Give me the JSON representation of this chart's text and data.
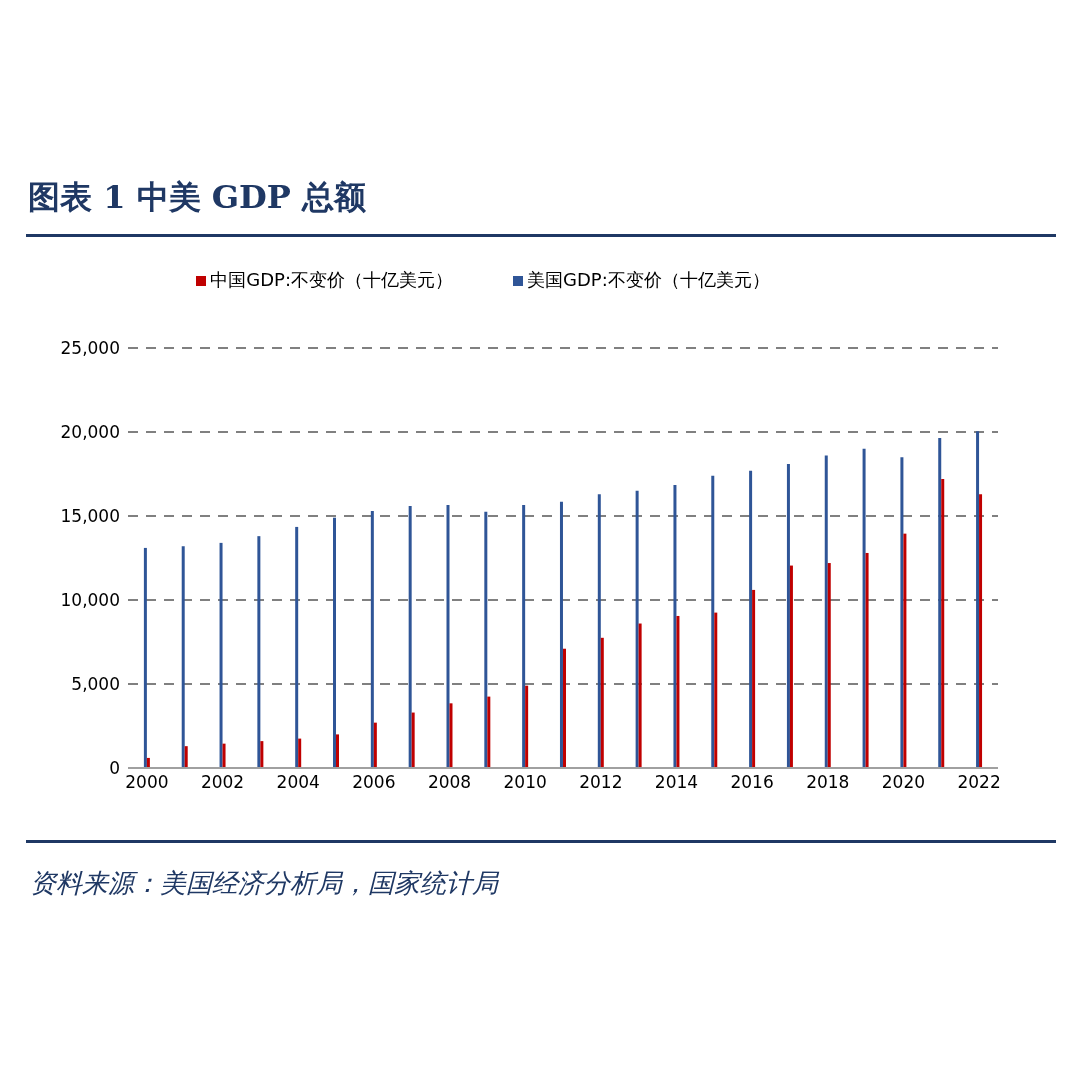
{
  "chart_data": {
    "type": "bar",
    "title": "图表 1  中美 GDP 总额",
    "annotations": [
      "资料来源：美国经济分析局，国家统计局"
    ],
    "categories": [
      "2000",
      null,
      "2002",
      null,
      "2004",
      null,
      "2006",
      null,
      "2008",
      null,
      "2010",
      null,
      "2012",
      null,
      "2014",
      null,
      "2016",
      null,
      "2018",
      null,
      "2020",
      null,
      "2022"
    ],
    "series": [
      {
        "name": "美国GDP:不变价（十亿美元）",
        "color": "#2f5597",
        "values": [
          13100,
          13200,
          13400,
          13800,
          14350,
          14900,
          15300,
          15600,
          15650,
          15250,
          15650,
          15850,
          16300,
          16500,
          16850,
          17400,
          17700,
          18100,
          18600,
          19000,
          18500,
          19650,
          20050
        ]
      },
      {
        "name": "中国GDP:不变价（十亿美元）",
        "color": "#c00000",
        "values": [
          600,
          1300,
          1450,
          1600,
          1750,
          2000,
          2700,
          3300,
          3850,
          4250,
          4900,
          7100,
          7750,
          8600,
          9050,
          9250,
          10600,
          12050,
          12200,
          12800,
          13950,
          17200,
          16300
        ]
      }
    ],
    "ylim": [
      0,
      25000
    ],
    "yticks": [
      {
        "value": 0,
        "label": "0"
      },
      {
        "value": 5000,
        "label": "5,000"
      },
      {
        "value": 10000,
        "label": "10,000"
      },
      {
        "value": 15000,
        "label": "15,000"
      },
      {
        "value": 20000,
        "label": "20,000"
      },
      {
        "value": 25000,
        "label": "25,000"
      }
    ],
    "grid": "y",
    "legend": "top"
  }
}
